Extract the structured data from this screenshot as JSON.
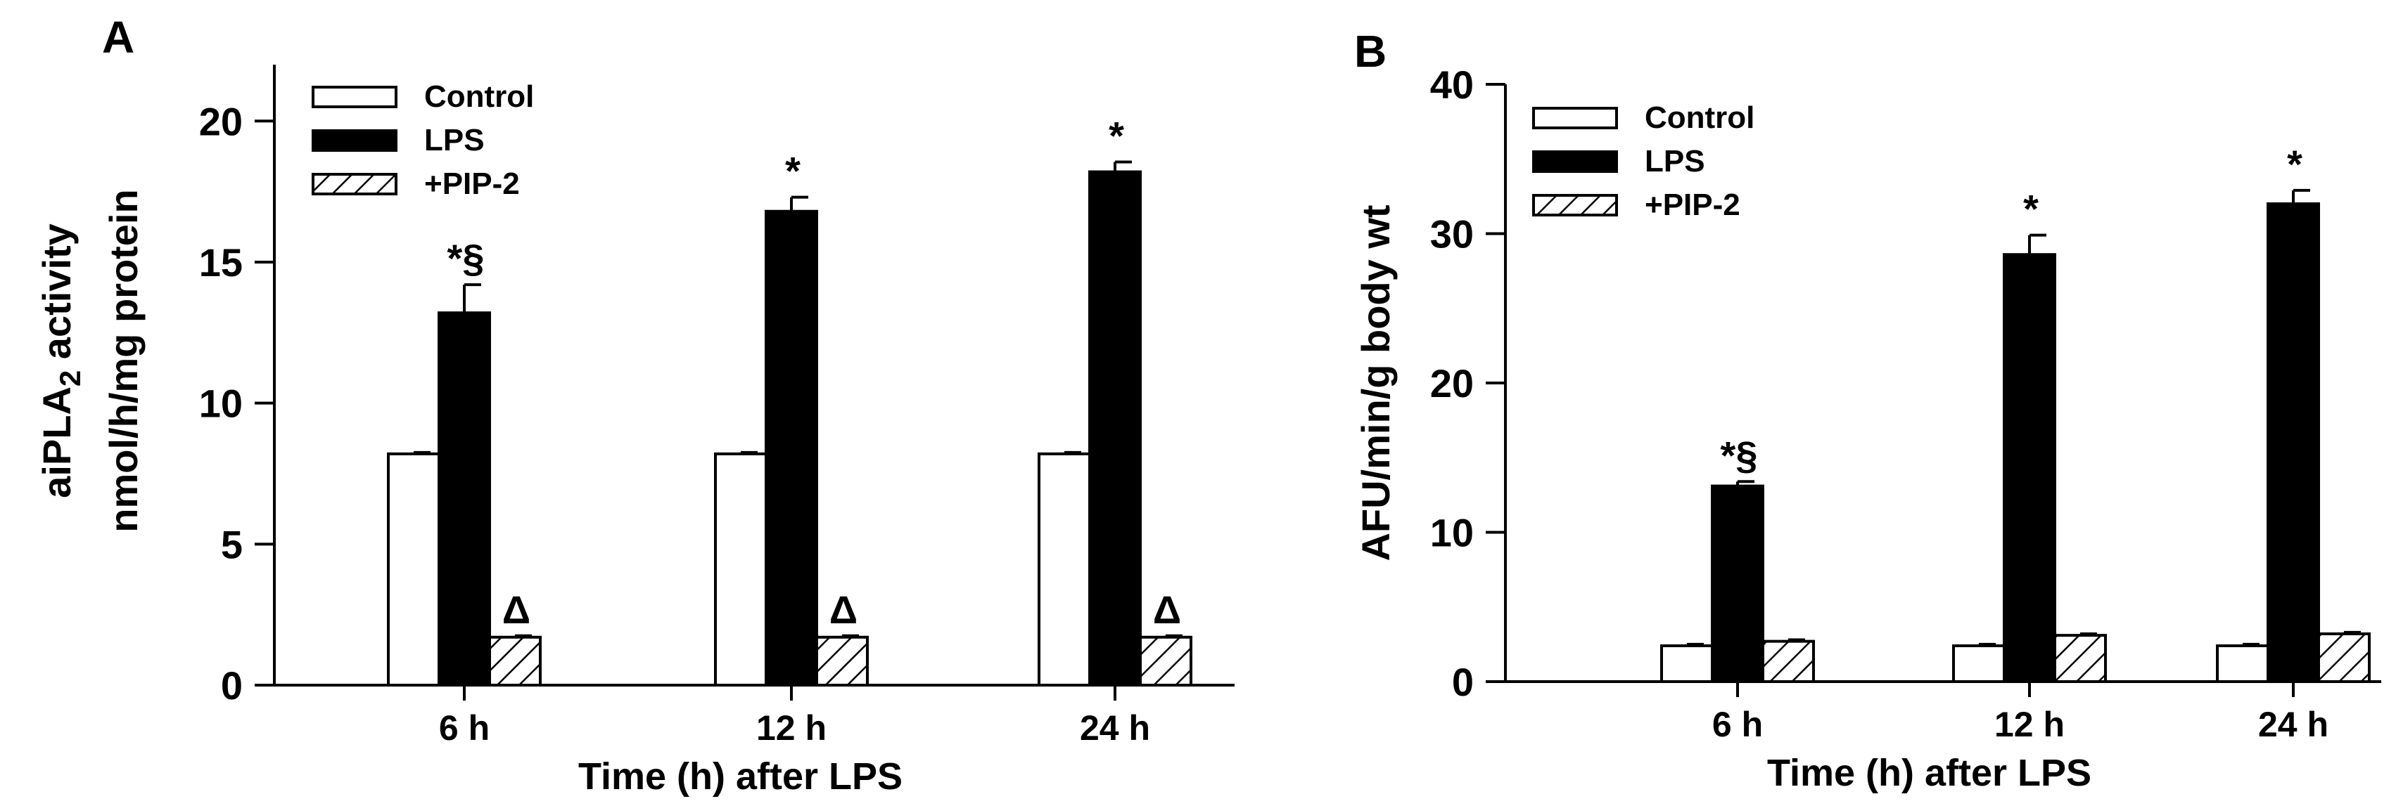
{
  "chart_data": [
    {
      "type": "bar",
      "panel_label": "A",
      "categories": [
        "6 h",
        "12 h",
        "24 h"
      ],
      "xlabel": "Time (h) after LPS",
      "ylabel_line1": "aiPLA",
      "ylabel_line1_sub": "2",
      "ylabel_line1_rest": " activity",
      "ylabel_line2": "nmol/h/mg protein",
      "ylim": [
        0,
        22
      ],
      "yticks": [
        0,
        5,
        10,
        15,
        20
      ],
      "legend_position": "top-left",
      "series": [
        {
          "name": "Control",
          "fill": "white",
          "values": [
            8.2,
            8.2,
            8.2
          ],
          "errors": [
            0.05,
            0.05,
            0.05
          ],
          "marks": [
            "",
            "",
            ""
          ]
        },
        {
          "name": "LPS",
          "fill": "black",
          "values": [
            13.2,
            16.8,
            18.2
          ],
          "errors": [
            1.0,
            0.5,
            0.35
          ],
          "marks": [
            "*§",
            "*",
            "*"
          ]
        },
        {
          "name": "+PIP-2",
          "fill": "hatch",
          "values": [
            1.7,
            1.7,
            1.7
          ],
          "errors": [
            0.05,
            0.05,
            0.05
          ],
          "marks": [
            "Δ",
            "Δ",
            "Δ"
          ]
        }
      ]
    },
    {
      "type": "bar",
      "panel_label": "B",
      "categories": [
        "6 h",
        "12 h",
        "24 h"
      ],
      "xlabel": "Time (h) after LPS",
      "ylabel": "AFU/min/g body wt",
      "ylim": [
        0,
        40
      ],
      "yticks": [
        0,
        10,
        20,
        30,
        40
      ],
      "legend_position": "top-left",
      "series": [
        {
          "name": "Control",
          "fill": "white",
          "values": [
            2.4,
            2.4,
            2.4
          ],
          "errors": [
            0.1,
            0.1,
            0.1
          ],
          "marks": [
            "",
            "",
            ""
          ]
        },
        {
          "name": "LPS",
          "fill": "black",
          "values": [
            13.1,
            28.6,
            32.0
          ],
          "errors": [
            0.3,
            1.3,
            0.9
          ],
          "marks": [
            "*§",
            "*",
            "*"
          ]
        },
        {
          "name": "+PIP-2",
          "fill": "hatch",
          "values": [
            2.7,
            3.1,
            3.2
          ],
          "errors": [
            0.1,
            0.1,
            0.1
          ],
          "marks": [
            "",
            "",
            ""
          ]
        }
      ]
    }
  ]
}
